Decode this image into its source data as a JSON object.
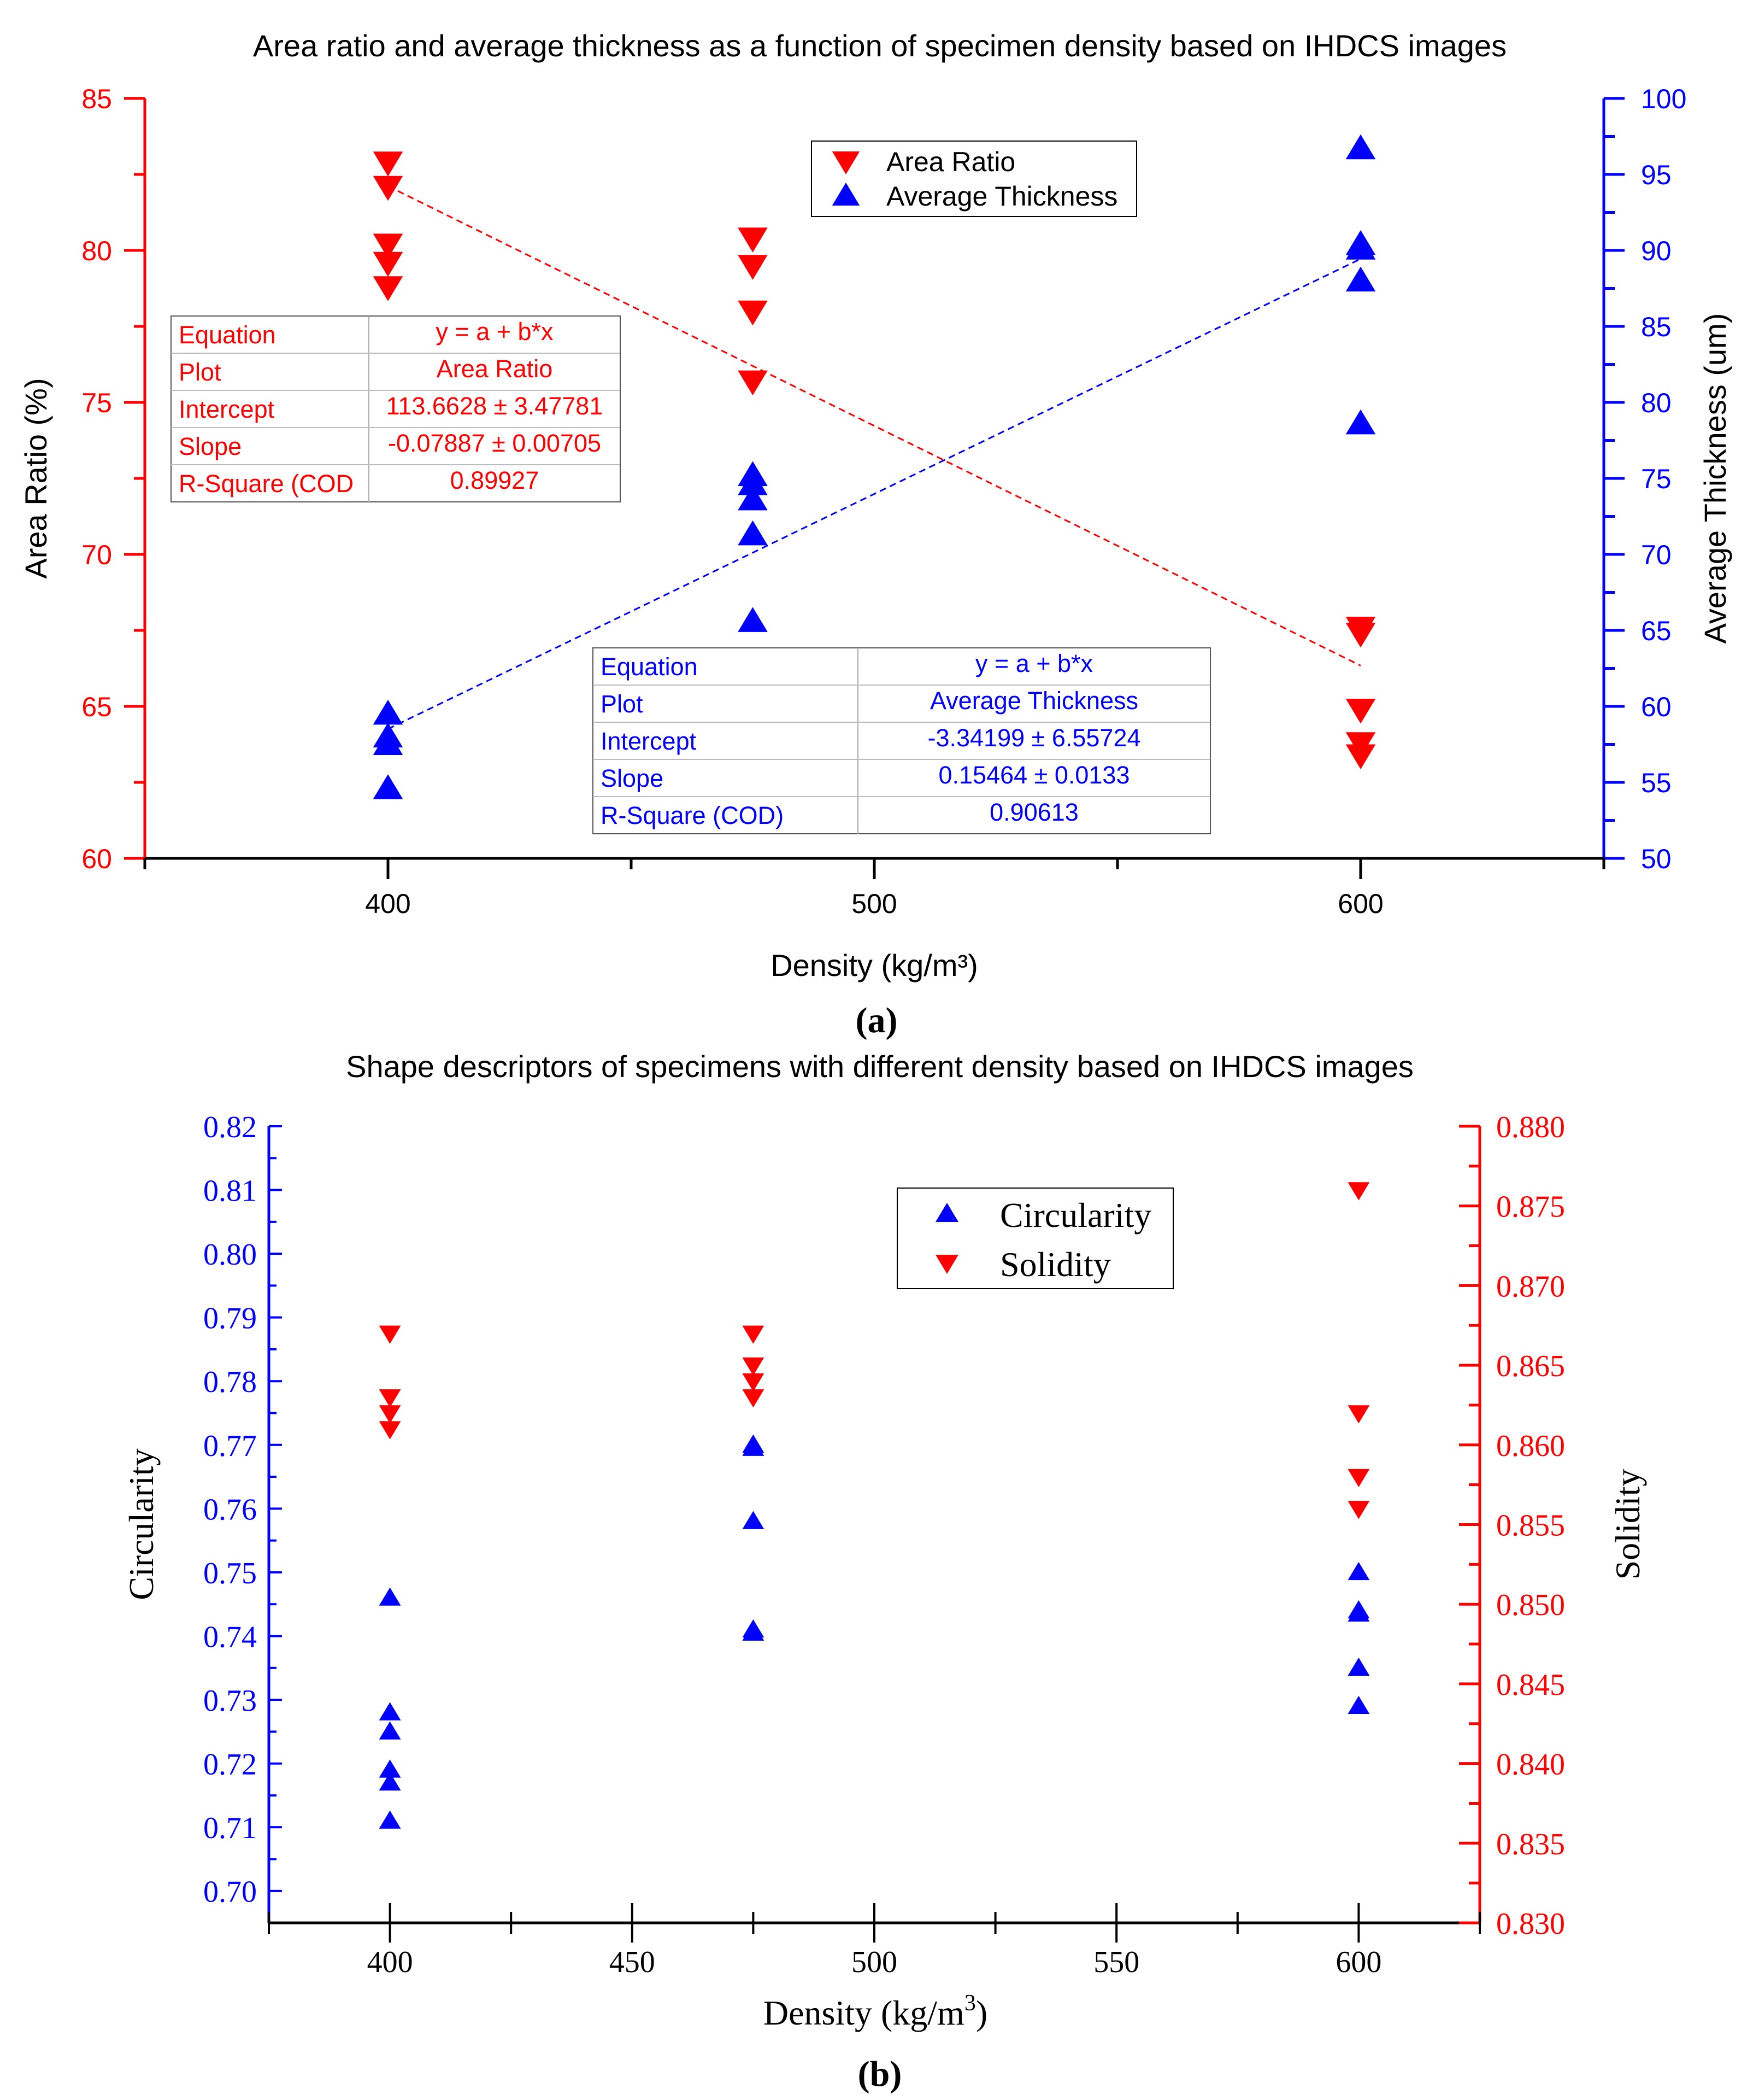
{
  "colors": {
    "red": "#ff0000",
    "blue": "#0000ff",
    "black": "#000000"
  },
  "chart_data": [
    {
      "type": "scatter",
      "panel_label": "(a)",
      "title": "Area ratio and average thickness as a function of specimen density based on IHDCS images",
      "xlabel": "Density (kg/m³)",
      "ylabel_left": "Area Ratio (%)",
      "ylabel_right": "Average Thickness (um)",
      "xlim": [
        350,
        650
      ],
      "ylim_left": [
        60,
        85
      ],
      "ylim_right": [
        50,
        100
      ],
      "xticks": [
        "400",
        "500",
        "600"
      ],
      "yticks_left": [
        "60",
        "65",
        "70",
        "75",
        "80",
        "85"
      ],
      "yticks_right": [
        "50",
        "55",
        "60",
        "65",
        "70",
        "75",
        "80",
        "85",
        "90",
        "95",
        "100"
      ],
      "legend": {
        "position": "top-center",
        "entries": [
          "Area Ratio",
          "Average Thickness"
        ]
      },
      "series": [
        {
          "name": "Area Ratio",
          "axis": "left",
          "marker": "triangle-down",
          "color": "#ff0000",
          "x": [
            400,
            400,
            400,
            400,
            400,
            475,
            475,
            475,
            475,
            600,
            600,
            600,
            600,
            600
          ],
          "y": [
            82.9,
            82.1,
            80.2,
            79.6,
            78.8,
            80.4,
            79.5,
            78.0,
            75.7,
            67.6,
            67.4,
            64.9,
            63.8,
            63.4
          ]
        },
        {
          "name": "Average Thickness",
          "axis": "right",
          "marker": "triangle-up",
          "color": "#0000ff",
          "x": [
            400,
            400,
            400,
            400,
            475,
            475,
            475,
            475,
            475,
            600,
            600,
            600,
            600,
            600
          ],
          "y": [
            59.5,
            58.0,
            57.5,
            54.6,
            75.2,
            74.6,
            73.6,
            71.3,
            65.6,
            96.7,
            90.4,
            90.1,
            88.0,
            78.6
          ]
        }
      ],
      "fits": [
        {
          "series": "Area Ratio",
          "axis": "left",
          "color": "#ff0000",
          "intercept": 113.6628,
          "slope": -0.07887,
          "x_range": [
            400,
            600
          ]
        },
        {
          "series": "Average Thickness",
          "axis": "right",
          "color": "#0000ff",
          "intercept": -3.34199,
          "slope": 0.15464,
          "x_range": [
            400,
            600
          ]
        }
      ],
      "fit_tables": [
        {
          "color": "#ff0000",
          "rows": [
            [
              "Equation",
              "y = a + b*x"
            ],
            [
              "Plot",
              "Area Ratio"
            ],
            [
              "Intercept",
              "113.6628 ± 3.47781"
            ],
            [
              "Slope",
              "-0.07887 ± 0.00705"
            ],
            [
              "R-Square (COD",
              "0.89927"
            ]
          ]
        },
        {
          "color": "#0000ff",
          "rows": [
            [
              "Equation",
              "y = a + b*x"
            ],
            [
              "Plot",
              "Average Thickness"
            ],
            [
              "Intercept",
              "-3.34199 ± 6.55724"
            ],
            [
              "Slope",
              "0.15464 ± 0.0133"
            ],
            [
              "R-Square (COD)",
              "0.90613"
            ]
          ]
        }
      ]
    },
    {
      "type": "scatter",
      "panel_label": "(b)",
      "title": "Shape descriptors of specimens with different density based on IHDCS images",
      "xlabel": "Density (kg/m",
      "xlabel_sup": "3",
      "xlabel_end": ")",
      "ylabel_left": "Circularity",
      "ylabel_right": "Solidity",
      "xlim": [
        375,
        625
      ],
      "ylim_left": [
        0.695,
        0.82
      ],
      "ylim_right": [
        0.83,
        0.88
      ],
      "xticks": [
        "400",
        "450",
        "500",
        "550",
        "600"
      ],
      "yticks_left": [
        "0.70",
        "0.71",
        "0.72",
        "0.73",
        "0.74",
        "0.75",
        "0.76",
        "0.77",
        "0.78",
        "0.79",
        "0.80",
        "0.81",
        "0.82"
      ],
      "yticks_right": [
        "0.830",
        "0.835",
        "0.840",
        "0.845",
        "0.850",
        "0.855",
        "0.860",
        "0.865",
        "0.870",
        "0.875",
        "0.880"
      ],
      "legend": {
        "position": "top-right",
        "entries": [
          "Circularity",
          "Solidity"
        ]
      },
      "series": [
        {
          "name": "Circularity",
          "axis": "left",
          "marker": "triangle-up",
          "color": "#0000ff",
          "x": [
            400,
            400,
            400,
            400,
            400,
            400,
            475,
            475,
            475,
            475,
            475,
            600,
            600,
            600,
            600,
            600
          ],
          "y": [
            0.746,
            0.728,
            0.725,
            0.719,
            0.717,
            0.711,
            0.77,
            0.7695,
            0.758,
            0.741,
            0.7405,
            0.75,
            0.744,
            0.7435,
            0.735,
            0.729
          ]
        },
        {
          "name": "Solidity",
          "axis": "right",
          "marker": "triangle-down",
          "color": "#ff0000",
          "x": [
            400,
            400,
            400,
            400,
            475,
            475,
            475,
            475,
            600,
            600,
            600,
            600
          ],
          "y": [
            0.867,
            0.863,
            0.862,
            0.861,
            0.867,
            0.865,
            0.864,
            0.863,
            0.876,
            0.862,
            0.858,
            0.856
          ]
        }
      ]
    }
  ]
}
